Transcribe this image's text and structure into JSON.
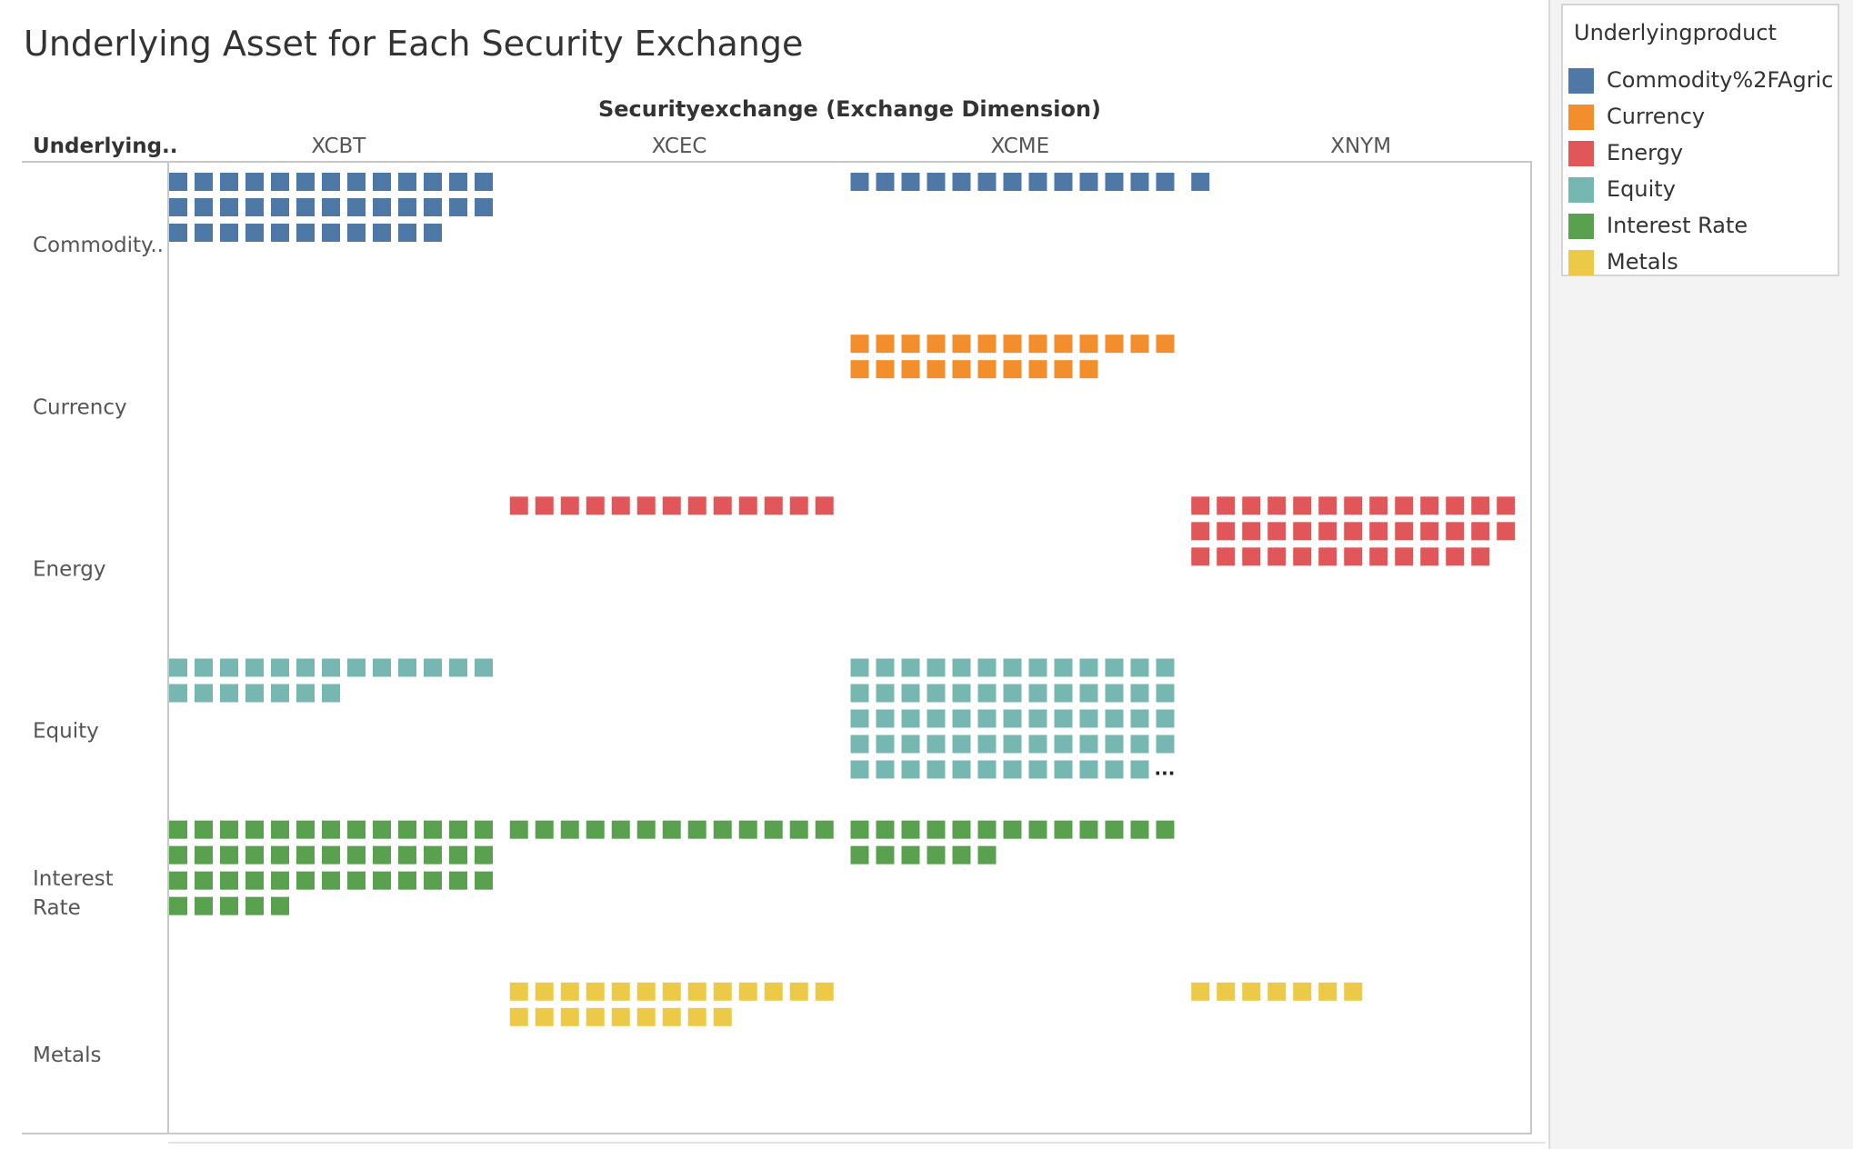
{
  "chart_data": {
    "type": "table",
    "title": "Underlying Asset for Each Security Exchange",
    "column_header": "Securityexchange (Exchange Dimension)",
    "row_header": "Underlying..",
    "columns": [
      "XCBT",
      "XCEC",
      "XCME",
      "XNYM"
    ],
    "rows": [
      {
        "key": "commodity",
        "label": "Commodity..",
        "color": "#4e79a7"
      },
      {
        "key": "currency",
        "label": "Currency",
        "color": "#f28e2b"
      },
      {
        "key": "energy",
        "label": "Energy",
        "color": "#e15759"
      },
      {
        "key": "equity",
        "label": "Equity",
        "color": "#76b7b2"
      },
      {
        "key": "interest_rate",
        "label": "Interest Rate",
        "color": "#59a14f"
      },
      {
        "key": "metals",
        "label": "Metals",
        "color": "#edc948"
      }
    ],
    "counts": {
      "commodity": [
        37,
        0,
        13,
        1
      ],
      "currency": [
        0,
        0,
        23,
        0
      ],
      "energy": [
        0,
        13,
        0,
        38
      ],
      "equity": [
        20,
        0,
        64,
        0
      ],
      "interest_rate": [
        44,
        13,
        19,
        0
      ],
      "metals": [
        0,
        22,
        0,
        7
      ]
    },
    "truncated_cells": [
      {
        "row": "equity",
        "column": "XCME",
        "marker": "..."
      },
      {
        "row": "energy",
        "column": "XNYM",
        "marker": ""
      }
    ]
  },
  "legend": {
    "title": "Underlyingproduct",
    "items": [
      {
        "label": "Commodity%2FAgric..",
        "color": "#4e79a7"
      },
      {
        "label": "Currency",
        "color": "#f28e2b"
      },
      {
        "label": "Energy",
        "color": "#e15759"
      },
      {
        "label": "Equity",
        "color": "#76b7b2"
      },
      {
        "label": "Interest Rate",
        "color": "#59a14f"
      },
      {
        "label": "Metals",
        "color": "#edc948"
      }
    ]
  }
}
